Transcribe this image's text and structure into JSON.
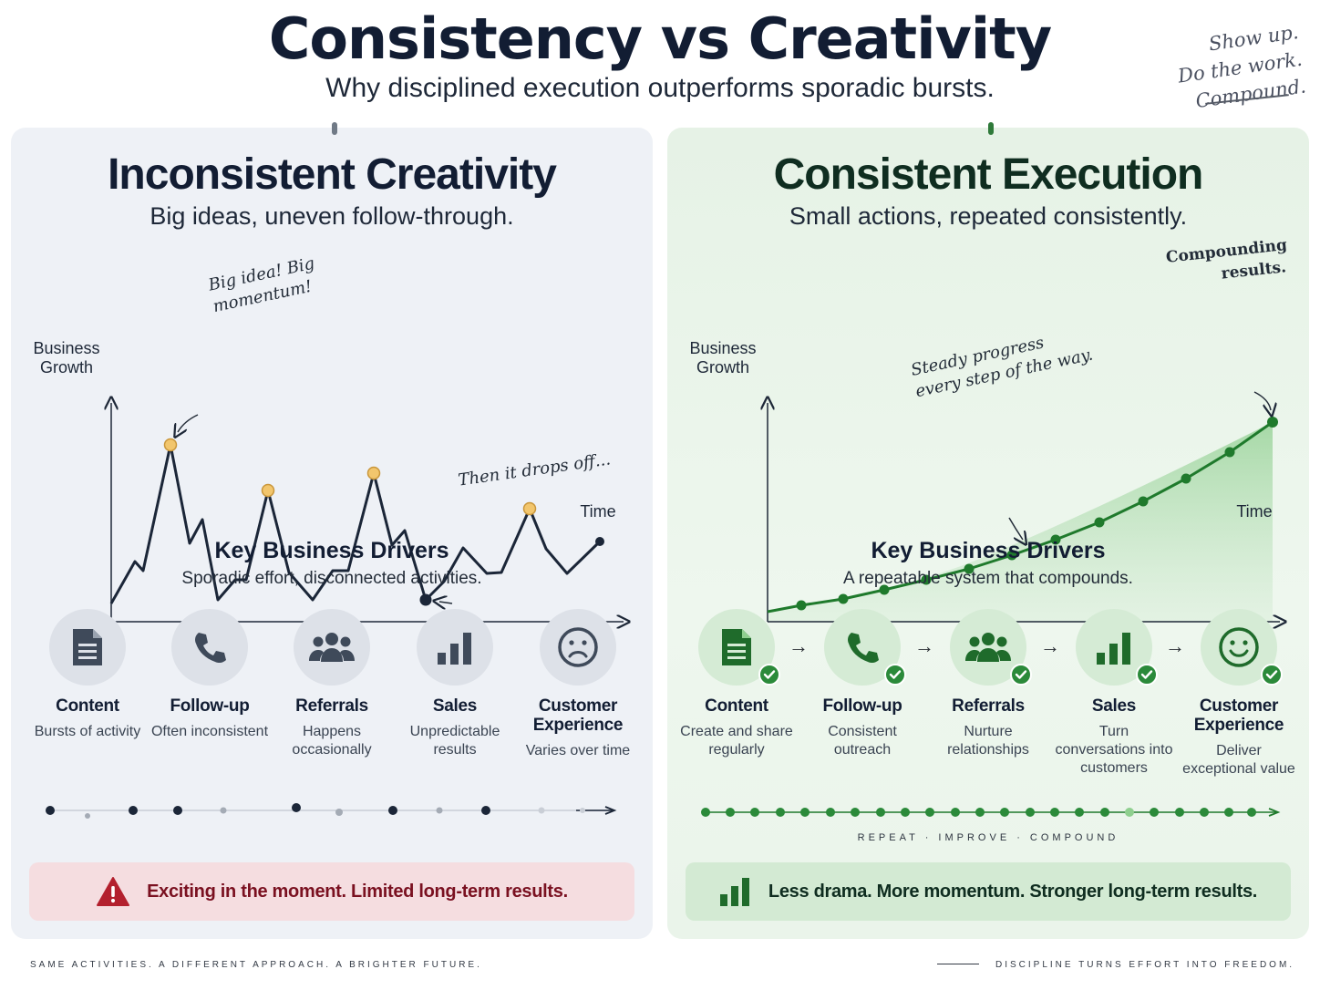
{
  "header": {
    "title": "Consistency vs Creativity",
    "subtitle": "Why disciplined execution outperforms sporadic bursts.",
    "motto_lines": [
      "Show up.",
      "Do the work.",
      "Compound."
    ]
  },
  "left_panel": {
    "title": "Inconsistent Creativity",
    "subtitle": "Big ideas, uneven follow-through.",
    "chart": {
      "y_label": "Business Growth",
      "x_label": "Time",
      "note_peak": "Big idea! Big momentum!",
      "note_drop": "Then it drops off..."
    },
    "drivers_title": "Key Business Drivers",
    "drivers_subtitle": "Sporadic effort, disconnected activities.",
    "drivers": [
      {
        "name": "Content",
        "desc": "Bursts of activity",
        "icon": "document-icon"
      },
      {
        "name": "Follow-up",
        "desc": "Often inconsistent",
        "icon": "phone-icon"
      },
      {
        "name": "Referrals",
        "desc": "Happens occasionally",
        "icon": "people-icon"
      },
      {
        "name": "Sales",
        "desc": "Unpredictable results",
        "icon": "bar-chart-icon"
      },
      {
        "name": "Customer Experience",
        "desc": "Varies over time",
        "icon": "sad-face-icon"
      }
    ],
    "banner_text": "Exciting in the moment. Limited long-term results.",
    "banner_icon": "warning-icon"
  },
  "right_panel": {
    "title": "Consistent Execution",
    "subtitle": "Small actions, repeated consistently.",
    "chart": {
      "y_label": "Business Growth",
      "x_label": "Time",
      "note_compound": "Compounding results.",
      "note_steady": "Steady progress every step of the way."
    },
    "drivers_title": "Key Business Drivers",
    "drivers_subtitle": "A repeatable system that compounds.",
    "drivers": [
      {
        "name": "Content",
        "desc": "Create and share regularly",
        "icon": "document-icon"
      },
      {
        "name": "Follow-up",
        "desc": "Consistent outreach",
        "icon": "phone-icon"
      },
      {
        "name": "Referrals",
        "desc": "Nurture relationships",
        "icon": "people-icon"
      },
      {
        "name": "Sales",
        "desc": "Turn conversations into customers",
        "icon": "bar-chart-icon"
      },
      {
        "name": "Customer Experience",
        "desc": "Deliver exceptional value",
        "icon": "smile-face-icon"
      }
    ],
    "cycle_label": "REPEAT · IMPROVE · COMPOUND",
    "banner_text": "Less drama. More momentum. Stronger long-term results.",
    "banner_icon": "growth-bars-icon"
  },
  "footer": {
    "left": "SAME ACTIVITIES. A DIFFERENT APPROACH. A BRIGHTER FUTURE.",
    "right": "DISCIPLINE TURNS EFFORT INTO FREEDOM."
  },
  "colors": {
    "navy": "#121d33",
    "green": "#2b8a3a",
    "line_green": "#1f7a2c",
    "peak_yellow": "#f2c66d",
    "warning_red": "#b3202e"
  }
}
